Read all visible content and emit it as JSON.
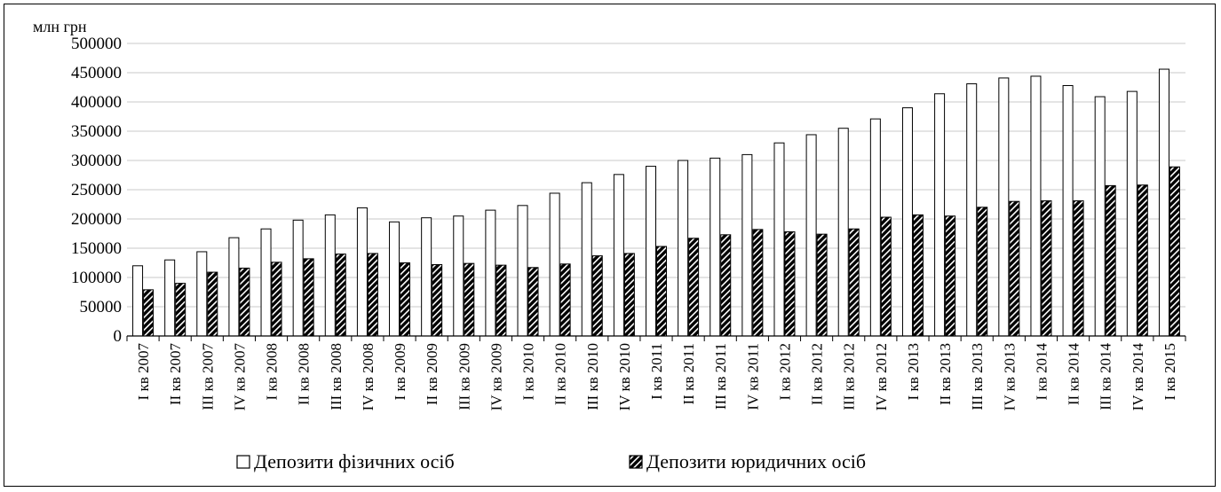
{
  "chart_data": {
    "type": "bar",
    "unit_label": "млн грн",
    "ylim": [
      0,
      500000
    ],
    "yticks": [
      "0",
      "50000",
      "100000",
      "150000",
      "200000",
      "250000",
      "300000",
      "350000",
      "400000",
      "450000",
      "500000"
    ],
    "grid": true,
    "legend_position": "bottom-center",
    "categories": [
      "І кв 2007",
      "ІІ кв 2007",
      "ІІІ кв 2007",
      "ІV кв 2007",
      "І кв 2008",
      "ІІ кв 2008",
      "ІІІ кв 2008",
      "ІV кв 2008",
      "І кв 2009",
      "ІІ кв 2009",
      "ІІІ кв 2009",
      "ІV кв 2009",
      "І кв 2010",
      "ІІ кв 2010",
      "ІІІ кв 2010",
      "ІV кв 2010",
      "І кв 2011",
      "ІІ кв 2011",
      "ІІІ кв 2011",
      "ІV кв 2011",
      "І кв 2012",
      "ІІ кв 2012",
      "ІІІ кв 2012",
      "ІV кв 2012",
      "І кв 2013",
      "ІІ кв 2013",
      "ІІІ кв 2013",
      "ІV кв 2013",
      "І кв 2014",
      "ІІ кв 2014",
      "ІІІ кв 2014",
      "ІV кв 2014",
      "І кв 2015"
    ],
    "series": [
      {
        "name": "Депозити фізичних осіб",
        "style": "white",
        "values": [
          120000,
          130000,
          144000,
          168000,
          183000,
          198000,
          207000,
          219000,
          195000,
          202000,
          205000,
          215000,
          223000,
          244000,
          262000,
          276000,
          290000,
          300000,
          304000,
          310000,
          330000,
          344000,
          355000,
          371000,
          390000,
          414000,
          431000,
          441000,
          444000,
          428000,
          409000,
          418000,
          456000
        ]
      },
      {
        "name": "Депозити юридичних осіб",
        "style": "hatched",
        "values": [
          79000,
          90000,
          109000,
          116000,
          126000,
          132000,
          140000,
          141000,
          125000,
          122000,
          124000,
          121000,
          117000,
          123000,
          137000,
          141000,
          153000,
          167000,
          173000,
          182000,
          178000,
          174000,
          183000,
          203000,
          207000,
          205000,
          220000,
          230000,
          231000,
          231000,
          257000,
          258000,
          289000
        ]
      }
    ]
  }
}
